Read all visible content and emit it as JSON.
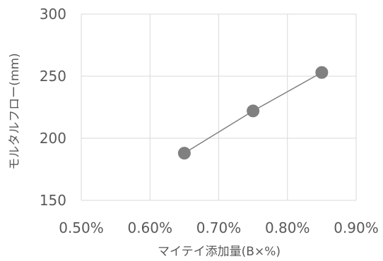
{
  "chart_data": {
    "type": "scatter",
    "xlabel": "マイテイ添加量(B×%)",
    "ylabel": "モルタルフロー(mm)",
    "xlim": [
      0.005,
      0.009
    ],
    "ylim": [
      150,
      300
    ],
    "x_ticks": [
      0.005,
      0.006,
      0.007,
      0.008,
      0.009
    ],
    "x_tick_labels": [
      "0.50%",
      "0.60%",
      "0.70%",
      "0.80%",
      "0.90%"
    ],
    "y_ticks": [
      150,
      200,
      250,
      300
    ],
    "y_tick_labels": [
      "150",
      "200",
      "250",
      "300"
    ],
    "grid": true,
    "series": [
      {
        "x": [
          0.0065,
          0.0075,
          0.0085
        ],
        "y": [
          188,
          222,
          253
        ],
        "color": "#808080",
        "line": true,
        "marker": "circle"
      }
    ]
  }
}
